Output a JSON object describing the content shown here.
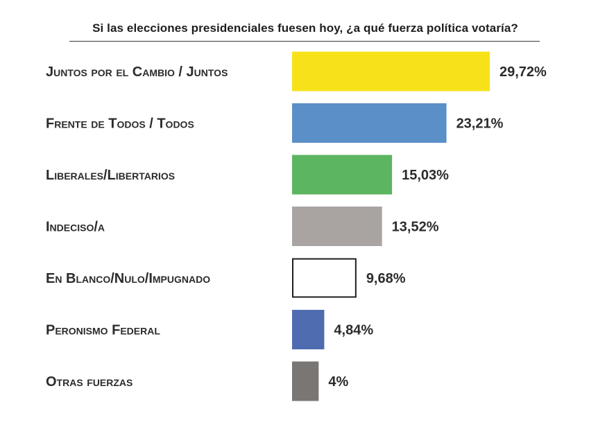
{
  "chart_data": {
    "type": "bar",
    "orientation": "horizontal",
    "title": "Si las elecciones presidenciales fuesen hoy, ¿a qué fuerza política votaría?",
    "categories": [
      "Juntos por el Cambio / Juntos",
      "Frente de Todos / Todos",
      "Liberales/Libertarios",
      "Indeciso/a",
      "En Blanco/Nulo/Impugnado",
      "Peronismo Federal",
      "Otras fuerzas"
    ],
    "values": [
      29.72,
      23.21,
      15.03,
      13.52,
      9.68,
      4.84,
      4
    ],
    "value_labels": [
      "29,72%",
      "23,21%",
      "15,03%",
      "13,52%",
      "9,68%",
      "4,84%",
      "4%"
    ],
    "colors": [
      "#f7e21a",
      "#5b8fc7",
      "#5cb560",
      "#a9a4a2",
      "#ffffff",
      "#4f6cb0",
      "#7a7673"
    ],
    "stroke_colors": [
      "none",
      "none",
      "none",
      "none",
      "#1e1e1e",
      "none",
      "none"
    ],
    "xlim": [
      0,
      30
    ],
    "grid": false,
    "legend": "none",
    "xlabel": "",
    "ylabel": ""
  }
}
